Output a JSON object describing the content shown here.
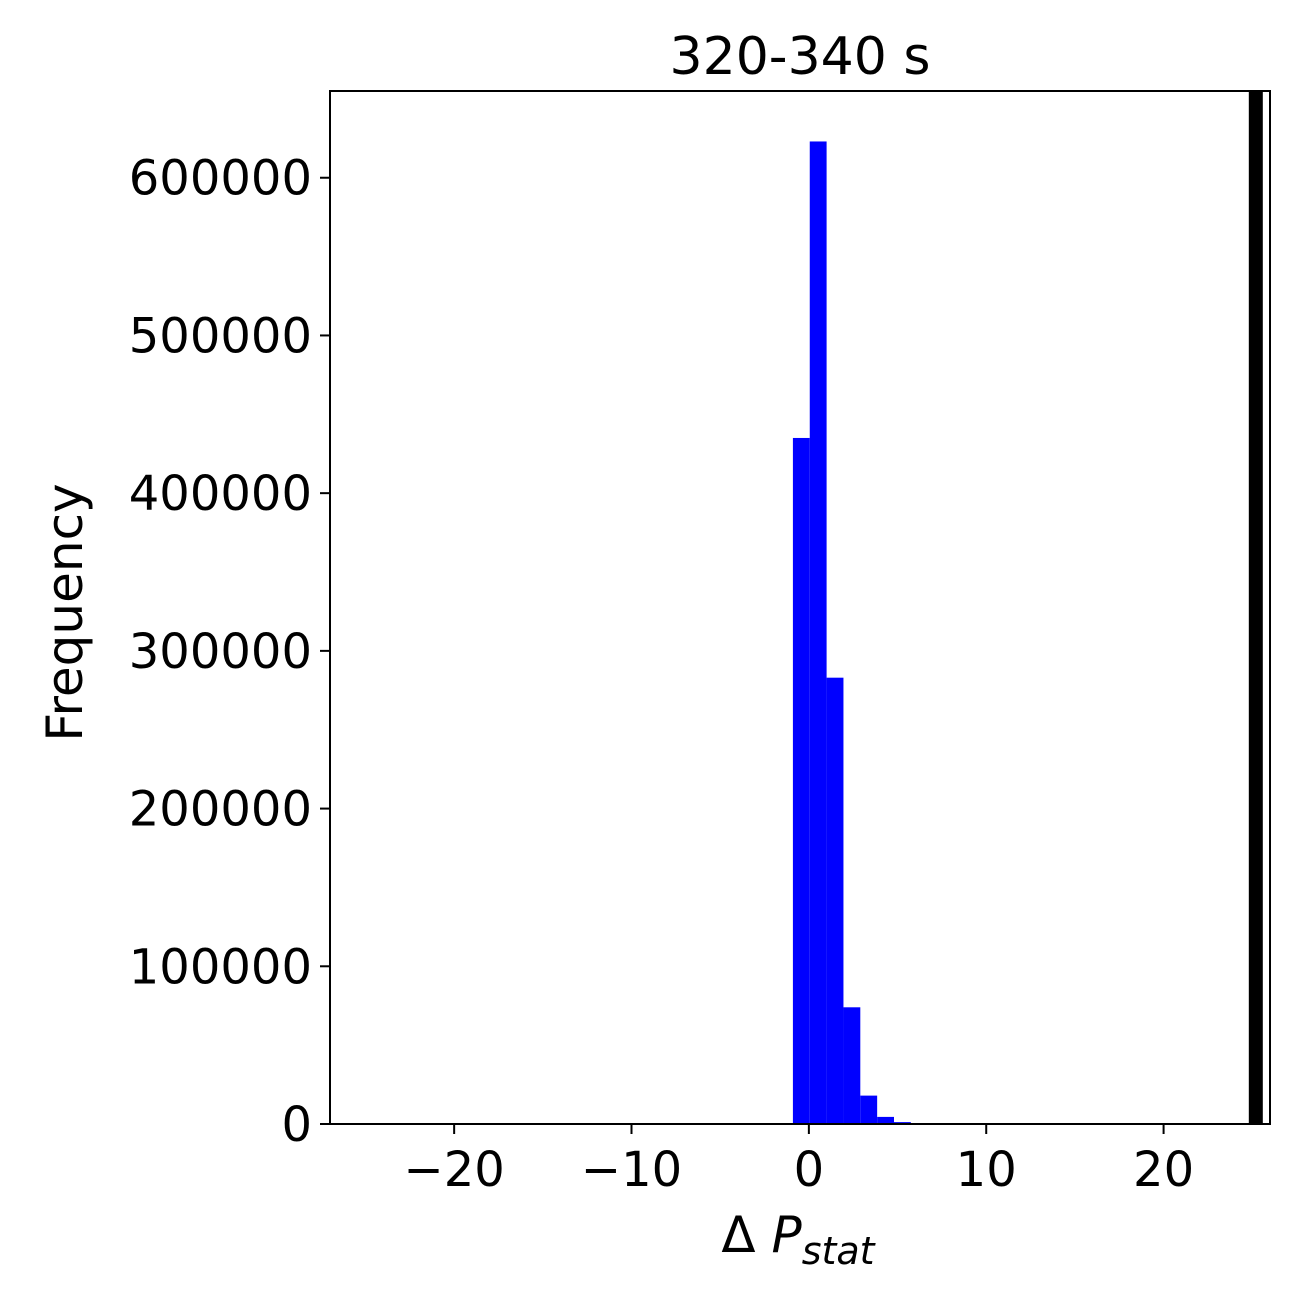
{
  "chart_data": {
    "type": "bar",
    "title": "320-340 s",
    "xlabel": {
      "prefix": "Δ ",
      "main": "P",
      "sub": "stat"
    },
    "ylabel": "Frequency",
    "xlim": [
      -27,
      26
    ],
    "ylim": [
      0,
      655000
    ],
    "xticks": [
      -20,
      -10,
      0,
      10,
      20
    ],
    "xtick_labels": [
      "−20",
      "−10",
      "0",
      "10",
      "20"
    ],
    "yticks": [
      0,
      100000,
      200000,
      300000,
      400000,
      500000,
      600000
    ],
    "ytick_labels": [
      "0",
      "100000",
      "200000",
      "300000",
      "400000",
      "500000",
      "600000"
    ],
    "bar_color": "#0000ff",
    "bins": [
      {
        "x0": -0.9,
        "x1": 0.05,
        "count": 435000
      },
      {
        "x0": 0.05,
        "x1": 1.0,
        "count": 623000
      },
      {
        "x0": 1.0,
        "x1": 1.95,
        "count": 283000
      },
      {
        "x0": 1.95,
        "x1": 2.9,
        "count": 74000
      },
      {
        "x0": 2.9,
        "x1": 3.85,
        "count": 18000
      },
      {
        "x0": 3.85,
        "x1": 4.8,
        "count": 4500
      },
      {
        "x0": 4.8,
        "x1": 5.75,
        "count": 1200
      },
      {
        "x0": 5.75,
        "x1": 6.7,
        "count": 300
      }
    ],
    "marker_line": {
      "x": 25.2,
      "color": "#000000"
    }
  }
}
